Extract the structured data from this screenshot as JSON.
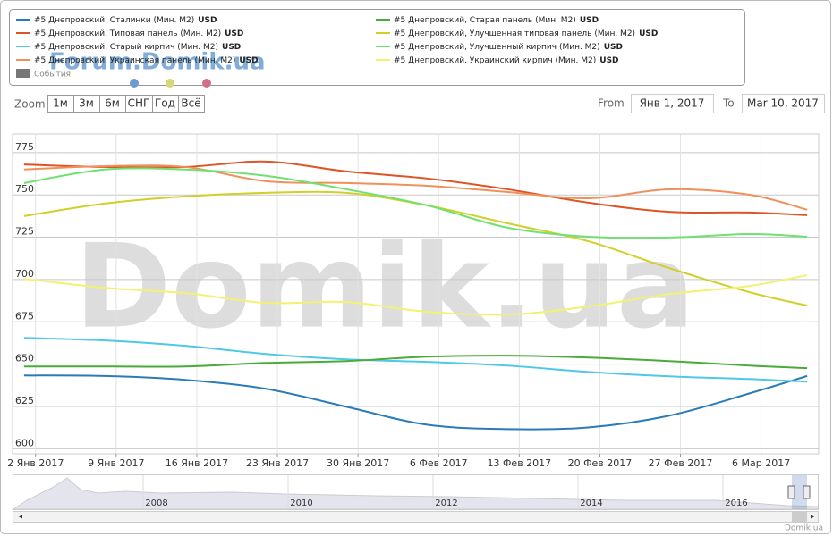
{
  "chart_data": {
    "type": "line",
    "watermark": "Domik.ua",
    "forum_label": "Forum.Domik.ua",
    "events_label": "События",
    "zoom_label": "Zoom",
    "zoom_buttons": [
      "1м",
      "3м",
      "6м",
      "СНГ",
      "Год",
      "Всё"
    ],
    "from_label": "From",
    "from_value": "Янв 1, 2017",
    "to_label": "To",
    "to_value": "Mar 10, 2017",
    "unit": "USD",
    "x": [
      "2017-01-01",
      "2017-01-08",
      "2017-01-15",
      "2017-01-22",
      "2017-01-29",
      "2017-02-05",
      "2017-02-12",
      "2017-02-19",
      "2017-02-26",
      "2017-03-05",
      "2017-03-10"
    ],
    "xlim": [
      "2016-12-31",
      "2017-03-11"
    ],
    "xticks": [
      {
        "value": "2017-01-02",
        "label": "2 Янв 2017"
      },
      {
        "value": "2017-01-09",
        "label": "9 Янв 2017"
      },
      {
        "value": "2017-01-16",
        "label": "16 Янв 2017"
      },
      {
        "value": "2017-01-23",
        "label": "23 Янв 2017"
      },
      {
        "value": "2017-01-30",
        "label": "30 Янв 2017"
      },
      {
        "value": "2017-02-06",
        "label": "6 Фев 2017"
      },
      {
        "value": "2017-02-13",
        "label": "13 Фев 2017"
      },
      {
        "value": "2017-02-20",
        "label": "20 Фев 2017"
      },
      {
        "value": "2017-02-27",
        "label": "27 Фев 2017"
      },
      {
        "value": "2017-03-06",
        "label": "6 Мар 2017"
      }
    ],
    "ylim": [
      597,
      786
    ],
    "yticks": [
      600,
      625,
      650,
      675,
      700,
      725,
      750,
      775
    ],
    "grid": true,
    "series": [
      {
        "name": "#5 Днепровский, Сталинки (Мин. M2)",
        "color": "#2b7bb9",
        "values": [
          643.3,
          643,
          640.7,
          635.4,
          624.8,
          614.2,
          611.6,
          612.6,
          619.5,
          632.7,
          643
        ]
      },
      {
        "name": "#5 Днепровский, Типовая панель (Мин. M2)",
        "color": "#dd5427",
        "values": [
          768,
          766.5,
          766.5,
          769.7,
          763.9,
          759.7,
          753.3,
          745.4,
          740,
          739.6,
          738
        ]
      },
      {
        "name": "#5 Днепровский, Старый кирпич (Мин. M2)",
        "color": "#4fc8e8",
        "values": [
          665.5,
          664,
          660.8,
          656,
          652.8,
          651.3,
          649.1,
          645.4,
          642.8,
          641.2,
          639.6
        ]
      },
      {
        "name": "#5 Днепровский, Украинская панель (Мин. M2)",
        "color": "#f0905a",
        "values": [
          765,
          767,
          766.5,
          758.1,
          757,
          755.4,
          751.7,
          748,
          753.3,
          750.1,
          741.2
        ]
      },
      {
        "name": "#5 Днепровский, Старая панель (Мин. M2)",
        "color": "#4aaa3a",
        "values": [
          648.6,
          648.6,
          648.6,
          650.7,
          651.8,
          654.4,
          655,
          653.9,
          651.8,
          649.1,
          647.6
        ]
      },
      {
        "name": "#5 Днепровский, Улучшенная типовая панель (Мин. M2)",
        "color": "#d0d02a",
        "values": [
          737.5,
          744.9,
          749.1,
          751.2,
          751.2,
          743.8,
          733.2,
          722.6,
          706.8,
          692.5,
          684.6
        ]
      },
      {
        "name": "#5 Днепровский, Улучшенный кирпич (Мин. M2)",
        "color": "#70e070",
        "values": [
          757,
          765,
          765,
          761.3,
          753.3,
          743.8,
          730.6,
          725.3,
          724.8,
          726.9,
          725.3
        ]
      },
      {
        "name": "#5 Днепровский, Украинский кирпич (Мин. M2)",
        "color": "#f2f270",
        "values": [
          700.4,
          695.1,
          692,
          686.2,
          686.7,
          680.9,
          679.3,
          684,
          691.4,
          696.2,
          702.6
        ]
      }
    ],
    "navigator_labels": [
      "2008",
      "2010",
      "2012",
      "2014",
      "2016"
    ],
    "credit": "Domik.ua"
  }
}
